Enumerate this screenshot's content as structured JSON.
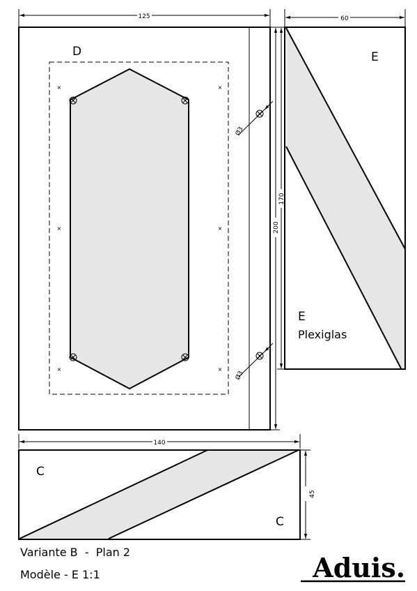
{
  "panel_d": {
    "label": "D",
    "width_dim": "125",
    "height_dim": "200",
    "hole_dim_top": "Ø3",
    "hole_dim_bottom": "Ø3"
  },
  "panel_e": {
    "label_top": "E",
    "label_bottom": "E",
    "material": "Plexiglas",
    "width_dim": "60",
    "height_dim": "170"
  },
  "panel_c": {
    "label_left": "C",
    "label_right": "C",
    "width_dim": "140",
    "height_dim": "45"
  },
  "footer": {
    "variant": "Variante B  -  Plan 2",
    "model": "Modèle - E 1:1",
    "brand": "Aduis."
  }
}
